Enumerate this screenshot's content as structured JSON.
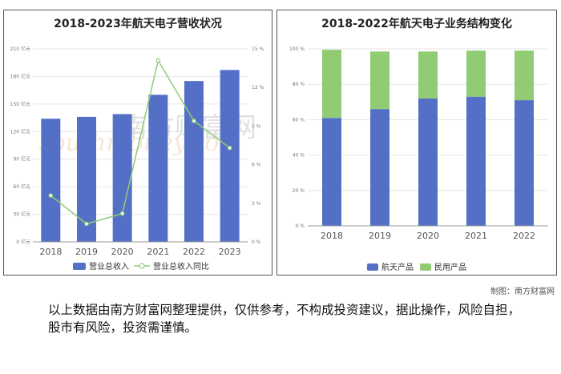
{
  "chart_data": [
    {
      "type": "bar",
      "title": "2018-2023年航天电子营收状况",
      "categories": [
        "2018",
        "2019",
        "2020",
        "2021",
        "2022",
        "2023"
      ],
      "series": [
        {
          "name": "营业总收入",
          "type": "bar",
          "axis": "left",
          "color": "#5470c6",
          "values": [
            134,
            136,
            139,
            160,
            175,
            187
          ]
        },
        {
          "name": "营业总收入同比",
          "type": "line",
          "axis": "right",
          "color": "#91cc75",
          "values": [
            3.6,
            1.4,
            2.2,
            14.1,
            9.4,
            7.3
          ]
        }
      ],
      "ylim_left": [
        0,
        210
      ],
      "yticks_left": [
        "0 亿元",
        "30 亿元",
        "60 亿元",
        "90 亿元",
        "120 亿元",
        "150 亿元",
        "180 亿元",
        "210 亿元"
      ],
      "ylim_right": [
        0,
        15
      ],
      "yticks_right": [
        "0 %",
        "3 %",
        "6 %",
        "9 %",
        "12 %",
        "15 %"
      ],
      "legend": "bottom"
    },
    {
      "type": "bar",
      "stacked": true,
      "title": "2018-2022年航天电子业务结构变化",
      "categories": [
        "2018",
        "2019",
        "2020",
        "2021",
        "2022"
      ],
      "series": [
        {
          "name": "航天产品",
          "color": "#5470c6",
          "values": [
            61,
            66,
            72,
            73,
            71
          ]
        },
        {
          "name": "民用产品",
          "color": "#91cc75",
          "values": [
            38.5,
            32.5,
            26.5,
            26,
            28
          ]
        }
      ],
      "ylim": [
        0,
        100
      ],
      "yticks": [
        "0 %",
        "20 %",
        "40 %",
        "60 %",
        "80 %",
        "100 %"
      ],
      "legend": "bottom"
    }
  ],
  "watermark": {
    "cn": "南方财富网",
    "en": "southmoney.com"
  },
  "credit": "制图：南方财富网",
  "disclaimer": "以上数据由南方财富网整理提供，仅供参考，不构成投资建议，据此操作，风险自担，股市有风险，投资需谨慎。"
}
